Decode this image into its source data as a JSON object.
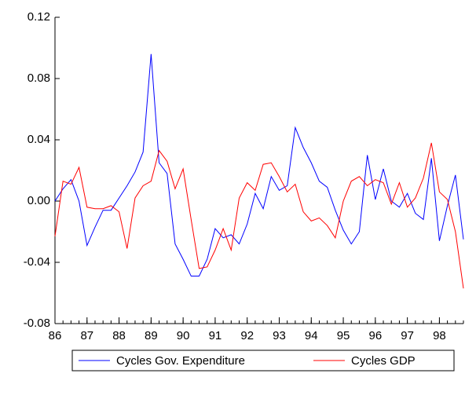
{
  "chart_data": {
    "type": "line",
    "x": [
      1986,
      1986.25,
      1986.5,
      1986.75,
      1987,
      1987.25,
      1987.5,
      1987.75,
      1988,
      1988.25,
      1988.5,
      1988.75,
      1989,
      1989.25,
      1989.5,
      1989.75,
      1990,
      1990.25,
      1990.5,
      1990.75,
      1991,
      1991.25,
      1991.5,
      1991.75,
      1992,
      1992.25,
      1992.5,
      1992.75,
      1993,
      1993.25,
      1993.5,
      1993.75,
      1994,
      1994.25,
      1994.5,
      1994.75,
      1995,
      1995.25,
      1995.5,
      1995.75,
      1996,
      1996.25,
      1996.5,
      1996.75,
      1997,
      1997.25,
      1997.5,
      1997.75,
      1998,
      1998.25,
      1998.5,
      1998.75
    ],
    "series": [
      {
        "name": "Cycles Gov. Expenditure",
        "color": "#0000ff",
        "values": [
          0.0,
          0.008,
          0.014,
          0.0,
          -0.029,
          -0.017,
          -0.006,
          -0.006,
          0.002,
          0.01,
          0.019,
          0.032,
          0.096,
          0.025,
          0.018,
          -0.028,
          -0.038,
          -0.049,
          -0.049,
          -0.038,
          -0.018,
          -0.024,
          -0.022,
          -0.028,
          -0.015,
          0.005,
          -0.005,
          0.016,
          0.007,
          0.01,
          0.048,
          0.035,
          0.025,
          0.013,
          0.009,
          -0.006,
          -0.019,
          -0.028,
          -0.02,
          0.03,
          0.001,
          0.021,
          0.0,
          -0.004,
          0.005,
          -0.008,
          -0.012,
          0.028,
          -0.026,
          -0.003,
          0.017,
          -0.025
        ]
      },
      {
        "name": "Cycles GDP",
        "color": "#ff0000",
        "values": [
          -0.023,
          0.013,
          0.011,
          0.022,
          -0.004,
          -0.005,
          -0.005,
          -0.003,
          -0.007,
          -0.031,
          0.002,
          0.01,
          0.013,
          0.033,
          0.026,
          0.008,
          0.021,
          -0.012,
          -0.044,
          -0.043,
          -0.032,
          -0.018,
          -0.032,
          0.002,
          0.012,
          0.007,
          0.024,
          0.025,
          0.016,
          0.006,
          0.011,
          -0.007,
          -0.013,
          -0.011,
          -0.016,
          -0.024,
          0.0,
          0.013,
          0.016,
          0.01,
          0.014,
          0.012,
          -0.002,
          0.012,
          -0.004,
          0.002,
          0.015,
          0.038,
          0.006,
          0.001,
          -0.02,
          -0.057
        ]
      }
    ],
    "xlim": [
      1986,
      1998.75
    ],
    "xticks": [
      {
        "value": 1986,
        "label": "86"
      },
      {
        "value": 1987,
        "label": "87"
      },
      {
        "value": 1988,
        "label": "88"
      },
      {
        "value": 1989,
        "label": "89"
      },
      {
        "value": 1990,
        "label": "90"
      },
      {
        "value": 1991,
        "label": "91"
      },
      {
        "value": 1992,
        "label": "92"
      },
      {
        "value": 1993,
        "label": "93"
      },
      {
        "value": 1994,
        "label": "94"
      },
      {
        "value": 1995,
        "label": "95"
      },
      {
        "value": 1996,
        "label": "96"
      },
      {
        "value": 1997,
        "label": "97"
      },
      {
        "value": 1998,
        "label": "98"
      }
    ],
    "ylim": [
      -0.08,
      0.12
    ],
    "yticks": [
      -0.08,
      -0.04,
      {
        "value": 0,
        "label": "0.00"
      },
      0.04,
      0.08,
      0.12
    ],
    "grid": false,
    "legend": "bottom"
  }
}
